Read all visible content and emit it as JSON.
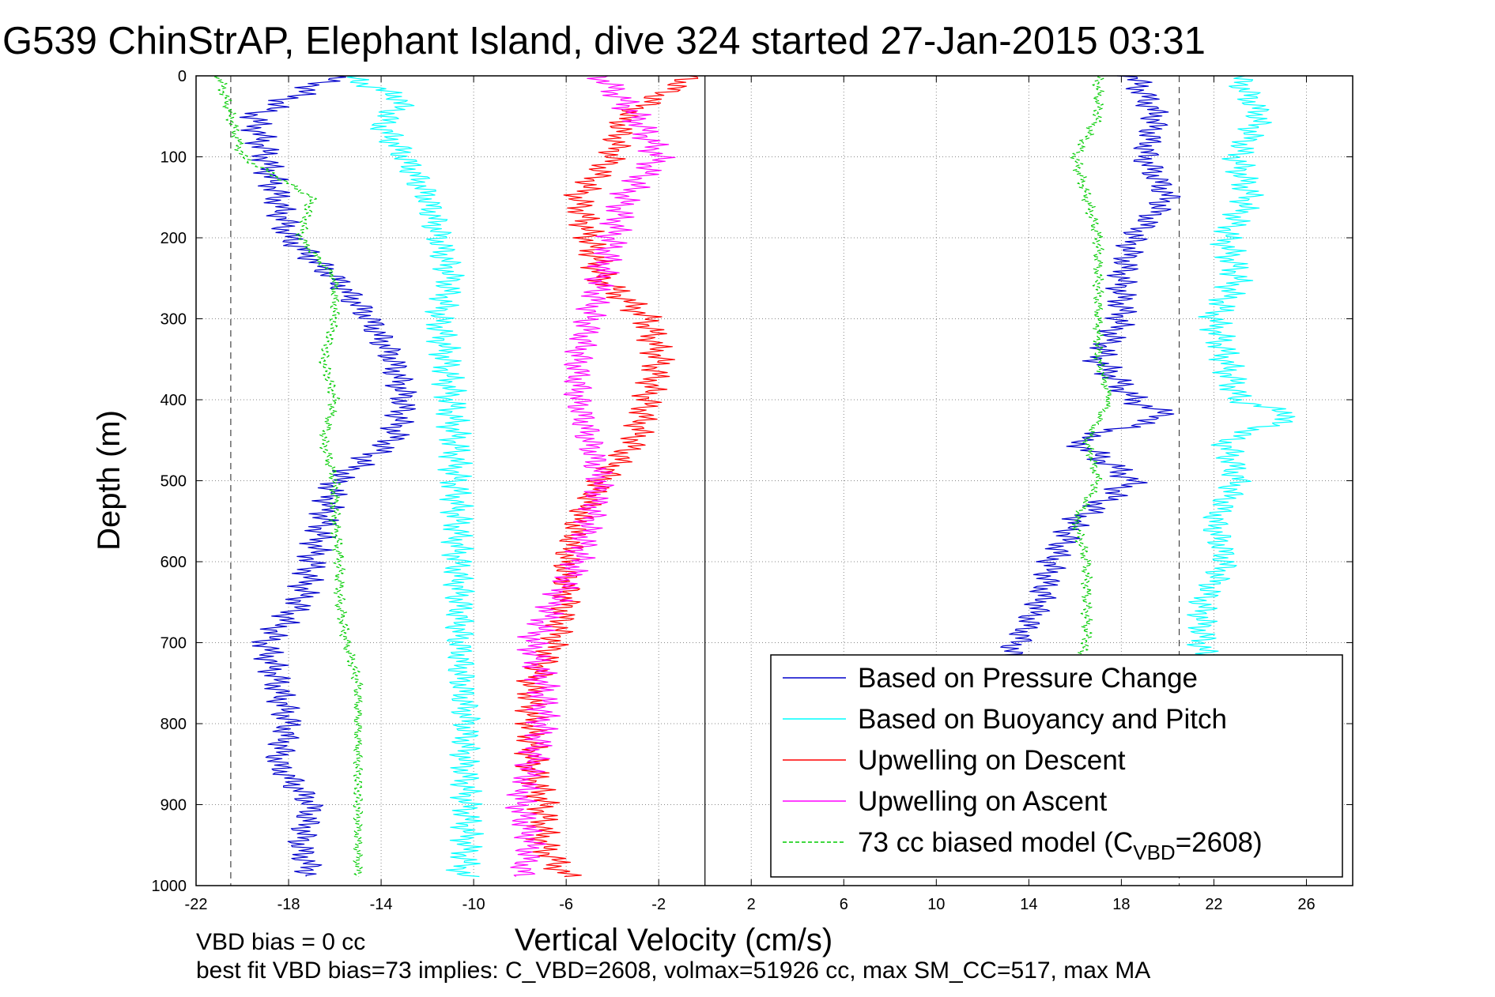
{
  "chart_data": {
    "type": "line",
    "title": "G539 ChinStrAP, Elephant Island, dive 324 started 27-Jan-2015 03:31",
    "xlabel": "Vertical Velocity (cm/s)",
    "ylabel": "Depth (m)",
    "xlim": [
      -22,
      28
    ],
    "ylim": [
      0,
      1000
    ],
    "y_reversed": true,
    "grid": true,
    "legend_position": "lower-right",
    "x_ticks": [
      -22,
      -18,
      -14,
      -10,
      -6,
      -2,
      2,
      6,
      10,
      14,
      18,
      22,
      26
    ],
    "x_tick_labels": [
      "-22",
      "-18",
      "-14",
      "-10",
      "-6",
      "-2",
      "2",
      "6",
      "10",
      "14",
      "18",
      "22",
      "26"
    ],
    "y_ticks": [
      0,
      100,
      200,
      300,
      400,
      500,
      600,
      700,
      800,
      900,
      1000
    ],
    "y_tick_labels": [
      "0",
      "100",
      "200",
      "300",
      "400",
      "500",
      "600",
      "700",
      "800",
      "900",
      "1000"
    ],
    "reference_lines": {
      "solid_x": [
        0
      ],
      "dashed_x": [
        -20.5,
        20.5
      ]
    },
    "series": [
      {
        "name": "Based on Pressure Change",
        "color": "#0000cc",
        "style": "solid",
        "group": "descent",
        "depth": [
          0,
          50,
          100,
          150,
          200,
          250,
          300,
          350,
          400,
          450,
          500,
          550,
          600,
          650,
          700,
          750,
          800,
          850,
          900,
          950,
          990
        ],
        "velocity": [
          -16.0,
          -19.5,
          -19.0,
          -18.5,
          -18.0,
          -16.0,
          -14.5,
          -13.5,
          -13.0,
          -13.5,
          -16.0,
          -16.5,
          -17.0,
          -17.5,
          -19.0,
          -18.5,
          -18.0,
          -18.5,
          -17.0,
          -17.5,
          -17.0
        ]
      },
      {
        "name": "Based on Buoyancy and Pitch",
        "color": "#00ffff",
        "style": "solid",
        "group": "descent",
        "depth": [
          0,
          30,
          60,
          100,
          150,
          200,
          250,
          300,
          350,
          400,
          450,
          500,
          550,
          600,
          650,
          700,
          750,
          800,
          850,
          900,
          950,
          990
        ],
        "velocity": [
          -15.5,
          -13.0,
          -14.0,
          -13.0,
          -12.0,
          -11.5,
          -11.0,
          -11.5,
          -11.2,
          -11.0,
          -10.8,
          -10.8,
          -10.7,
          -10.7,
          -10.6,
          -10.6,
          -10.5,
          -10.3,
          -10.4,
          -10.3,
          -10.3,
          -10.5
        ]
      },
      {
        "name": "Upwelling on Descent",
        "color": "#ff0000",
        "style": "solid",
        "group": "descent",
        "depth": [
          0,
          50,
          100,
          150,
          200,
          250,
          300,
          350,
          400,
          450,
          500,
          550,
          600,
          650,
          700,
          750,
          800,
          850,
          900,
          950,
          990
        ],
        "velocity": [
          -0.5,
          -3.5,
          -4.0,
          -5.5,
          -5.0,
          -4.5,
          -2.5,
          -2.0,
          -2.5,
          -3.0,
          -4.5,
          -5.5,
          -6.0,
          -6.0,
          -6.5,
          -7.5,
          -7.5,
          -7.5,
          -7.0,
          -7.0,
          -6.0
        ]
      },
      {
        "name": "Upwelling on Ascent",
        "color": "#ff00ff",
        "style": "solid",
        "group": "descent",
        "depth": [
          0,
          50,
          100,
          150,
          200,
          250,
          300,
          350,
          400,
          450,
          500,
          550,
          600,
          650,
          700,
          750,
          800,
          850,
          900,
          950,
          990
        ],
        "velocity": [
          -4.5,
          -3.0,
          -2.0,
          -3.5,
          -4.0,
          -4.5,
          -5.0,
          -5.5,
          -5.5,
          -5.0,
          -4.5,
          -5.0,
          -5.5,
          -6.5,
          -7.5,
          -7.0,
          -7.0,
          -7.5,
          -8.0,
          -7.5,
          -8.0
        ]
      },
      {
        "name": "73 cc biased model (C_VBD=2608)",
        "legend_main": "73 cc biased model (C",
        "legend_sub": "VBD",
        "legend_tail": "=2608)",
        "color": "#00cc00",
        "style": "dashed",
        "group": "descent",
        "depth": [
          0,
          50,
          100,
          150,
          200,
          250,
          300,
          350,
          400,
          450,
          500,
          550,
          600,
          650,
          700,
          750,
          800,
          850,
          900,
          950,
          990
        ],
        "velocity": [
          -21.0,
          -20.5,
          -20.0,
          -17.0,
          -17.5,
          -16.0,
          -16.0,
          -16.5,
          -16.0,
          -16.5,
          -16.0,
          -16.0,
          -15.8,
          -15.8,
          -15.5,
          -15.0,
          -15.0,
          -15.0,
          -15.0,
          -15.0,
          -15.0
        ]
      },
      {
        "color": "#0000cc",
        "style": "solid",
        "group": "ascent",
        "depth": [
          0,
          50,
          100,
          150,
          200,
          250,
          300,
          350,
          400,
          420,
          450,
          500,
          550,
          600,
          650,
          700,
          720,
          950,
          990
        ],
        "velocity": [
          18.5,
          19.5,
          19.0,
          20.0,
          18.5,
          18.0,
          18.0,
          17.0,
          18.5,
          20.0,
          16.0,
          18.5,
          16.0,
          15.0,
          14.5,
          13.5,
          13.0,
          9.0,
          7.5
        ]
      },
      {
        "color": "#00ffff",
        "style": "solid",
        "group": "ascent",
        "depth": [
          0,
          50,
          100,
          150,
          200,
          250,
          300,
          350,
          400,
          420,
          450,
          500,
          550,
          600,
          650,
          700,
          750,
          990
        ],
        "velocity": [
          23.0,
          24.0,
          23.0,
          23.5,
          22.5,
          23.0,
          22.0,
          22.5,
          23.0,
          25.5,
          22.5,
          23.0,
          22.0,
          22.5,
          21.5,
          21.5,
          21.5,
          16.0
        ]
      },
      {
        "color": "#00cc00",
        "style": "dashed",
        "group": "ascent",
        "depth": [
          0,
          50,
          100,
          150,
          200,
          250,
          300,
          350,
          400,
          450,
          500,
          550,
          600,
          650,
          700,
          990
        ],
        "velocity": [
          17.0,
          17.0,
          16.0,
          16.5,
          17.0,
          17.0,
          17.0,
          17.0,
          17.5,
          16.5,
          17.0,
          16.0,
          16.5,
          16.5,
          16.5,
          10.0
        ]
      }
    ]
  },
  "footer": {
    "line1": "VBD bias = 0 cc",
    "line2": "best fit VBD bias=73 implies: C_VBD=2608, volmax=51926 cc, max SM_CC=517, max MA"
  },
  "colors": {
    "grid": "#888888",
    "axes": "#000000",
    "background": "#ffffff"
  }
}
